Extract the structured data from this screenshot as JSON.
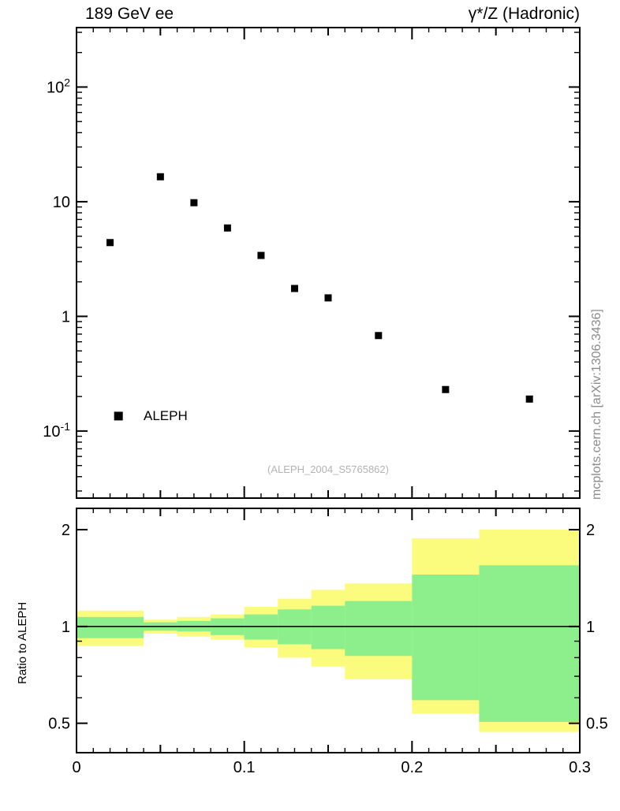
{
  "credit": "mcplots.cern.ch [arXiv:1306.3436]",
  "chart_data": [
    {
      "type": "scatter",
      "panel": "main",
      "title_left": "189 GeV ee",
      "title_right": "γ*/Z (Hadronic)",
      "xscale": "linear",
      "yscale": "log",
      "xlim": [
        0,
        0.3
      ],
      "ylim": [
        0.026,
        330
      ],
      "grid": false,
      "yticks": [
        {
          "value": 100,
          "label": "10^2"
        },
        {
          "value": 10,
          "label": "10"
        },
        {
          "value": 1,
          "label": "1"
        },
        {
          "value": 0.1,
          "label": "10^-1"
        }
      ],
      "xticks": {
        "minor_step": 0.01,
        "medium_step": 0.05,
        "major_step": 0.1,
        "labels": []
      },
      "series": [
        {
          "name": "ALEPH",
          "marker": "filled-square",
          "color": "#000000",
          "points": [
            [
              0.02,
              4.4
            ],
            [
              0.05,
              16.5
            ],
            [
              0.07,
              9.8
            ],
            [
              0.09,
              5.9
            ],
            [
              0.11,
              3.4
            ],
            [
              0.13,
              1.75
            ],
            [
              0.15,
              1.45
            ],
            [
              0.18,
              0.68
            ],
            [
              0.22,
              0.23
            ],
            [
              0.27,
              0.19
            ]
          ]
        }
      ],
      "legend": {
        "label": "ALEPH",
        "x": 0.025,
        "y": 0.135,
        "position": "lower-left"
      },
      "watermark": "(ALEPH_2004_S5765862)"
    },
    {
      "type": "area",
      "panel": "ratio",
      "ylabel": "Ratio to ALEPH",
      "xscale": "linear",
      "yscale": "log",
      "xlim": [
        0,
        0.3
      ],
      "ylim": [
        0.405,
        2.33
      ],
      "grid": false,
      "yticks": [
        {
          "value": 2,
          "label": "2"
        },
        {
          "value": 1,
          "label": "1"
        },
        {
          "value": 0.5,
          "label": "0.5"
        }
      ],
      "xticks": {
        "minor_step": 0.01,
        "medium_step": 0.05,
        "major_step": 0.1,
        "labels": [
          {
            "value": 0,
            "label": "0"
          },
          {
            "value": 0.1,
            "label": "0.1"
          },
          {
            "value": 0.2,
            "label": "0.2"
          },
          {
            "value": 0.3,
            "label": "0.3"
          }
        ]
      },
      "reference_line": 1,
      "band_colors": {
        "outer": "#fbfb7e",
        "inner": "#8cef8c"
      },
      "bands": [
        {
          "x0": 0.0,
          "x1": 0.04,
          "outer": [
            0.87,
            1.12
          ],
          "inner": [
            0.92,
            1.07
          ]
        },
        {
          "x0": 0.04,
          "x1": 0.06,
          "outer": [
            0.95,
            1.05
          ],
          "inner": [
            0.97,
            1.03
          ]
        },
        {
          "x0": 0.06,
          "x1": 0.08,
          "outer": [
            0.93,
            1.07
          ],
          "inner": [
            0.965,
            1.04
          ]
        },
        {
          "x0": 0.08,
          "x1": 0.1,
          "outer": [
            0.91,
            1.09
          ],
          "inner": [
            0.94,
            1.06
          ]
        },
        {
          "x0": 0.1,
          "x1": 0.12,
          "outer": [
            0.86,
            1.15
          ],
          "inner": [
            0.91,
            1.09
          ]
        },
        {
          "x0": 0.12,
          "x1": 0.14,
          "outer": [
            0.8,
            1.22
          ],
          "inner": [
            0.88,
            1.13
          ]
        },
        {
          "x0": 0.14,
          "x1": 0.16,
          "outer": [
            0.75,
            1.3
          ],
          "inner": [
            0.85,
            1.16
          ]
        },
        {
          "x0": 0.16,
          "x1": 0.2,
          "outer": [
            0.685,
            1.36
          ],
          "inner": [
            0.81,
            1.2
          ]
        },
        {
          "x0": 0.2,
          "x1": 0.24,
          "outer": [
            0.535,
            1.88
          ],
          "inner": [
            0.59,
            1.45
          ]
        },
        {
          "x0": 0.24,
          "x1": 0.3,
          "outer": [
            0.47,
            2.0
          ],
          "inner": [
            0.505,
            1.55
          ]
        }
      ]
    }
  ]
}
